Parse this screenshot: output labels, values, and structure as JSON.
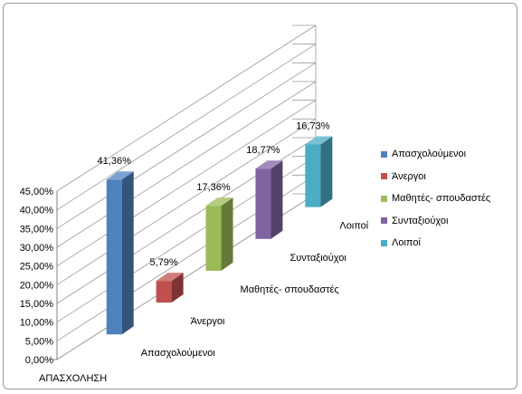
{
  "chart_data": {
    "type": "bar",
    "title": "",
    "xlabel": "",
    "ylabel": "",
    "x_axis_label": "ΑΠΑΣΧΟΛΗΣΗ",
    "ylim": [
      0,
      45
    ],
    "yticks": [
      "0,00%",
      "5,00%",
      "10,00%",
      "15,00%",
      "20,00%",
      "25,00%",
      "30,00%",
      "35,00%",
      "40,00%",
      "45,00%"
    ],
    "grid": true,
    "legend_position": "right",
    "series": [
      {
        "name": "Απασχολούμενοι",
        "value": 41.36,
        "label": "41,36%",
        "color": "#4f81bd"
      },
      {
        "name": "Άνεργοι",
        "value": 5.79,
        "label": "5,79%",
        "color": "#c0504d"
      },
      {
        "name": "Μαθητές- σπουδαστές",
        "value": 17.36,
        "label": "17,36%",
        "color": "#9bbb59"
      },
      {
        "name": "Συνταξιούχοι",
        "value": 18.77,
        "label": "18,77%",
        "color": "#8064a2"
      },
      {
        "name": "Λοιποί",
        "value": 16.73,
        "label": "16,73%",
        "color": "#4bacc6"
      }
    ]
  }
}
